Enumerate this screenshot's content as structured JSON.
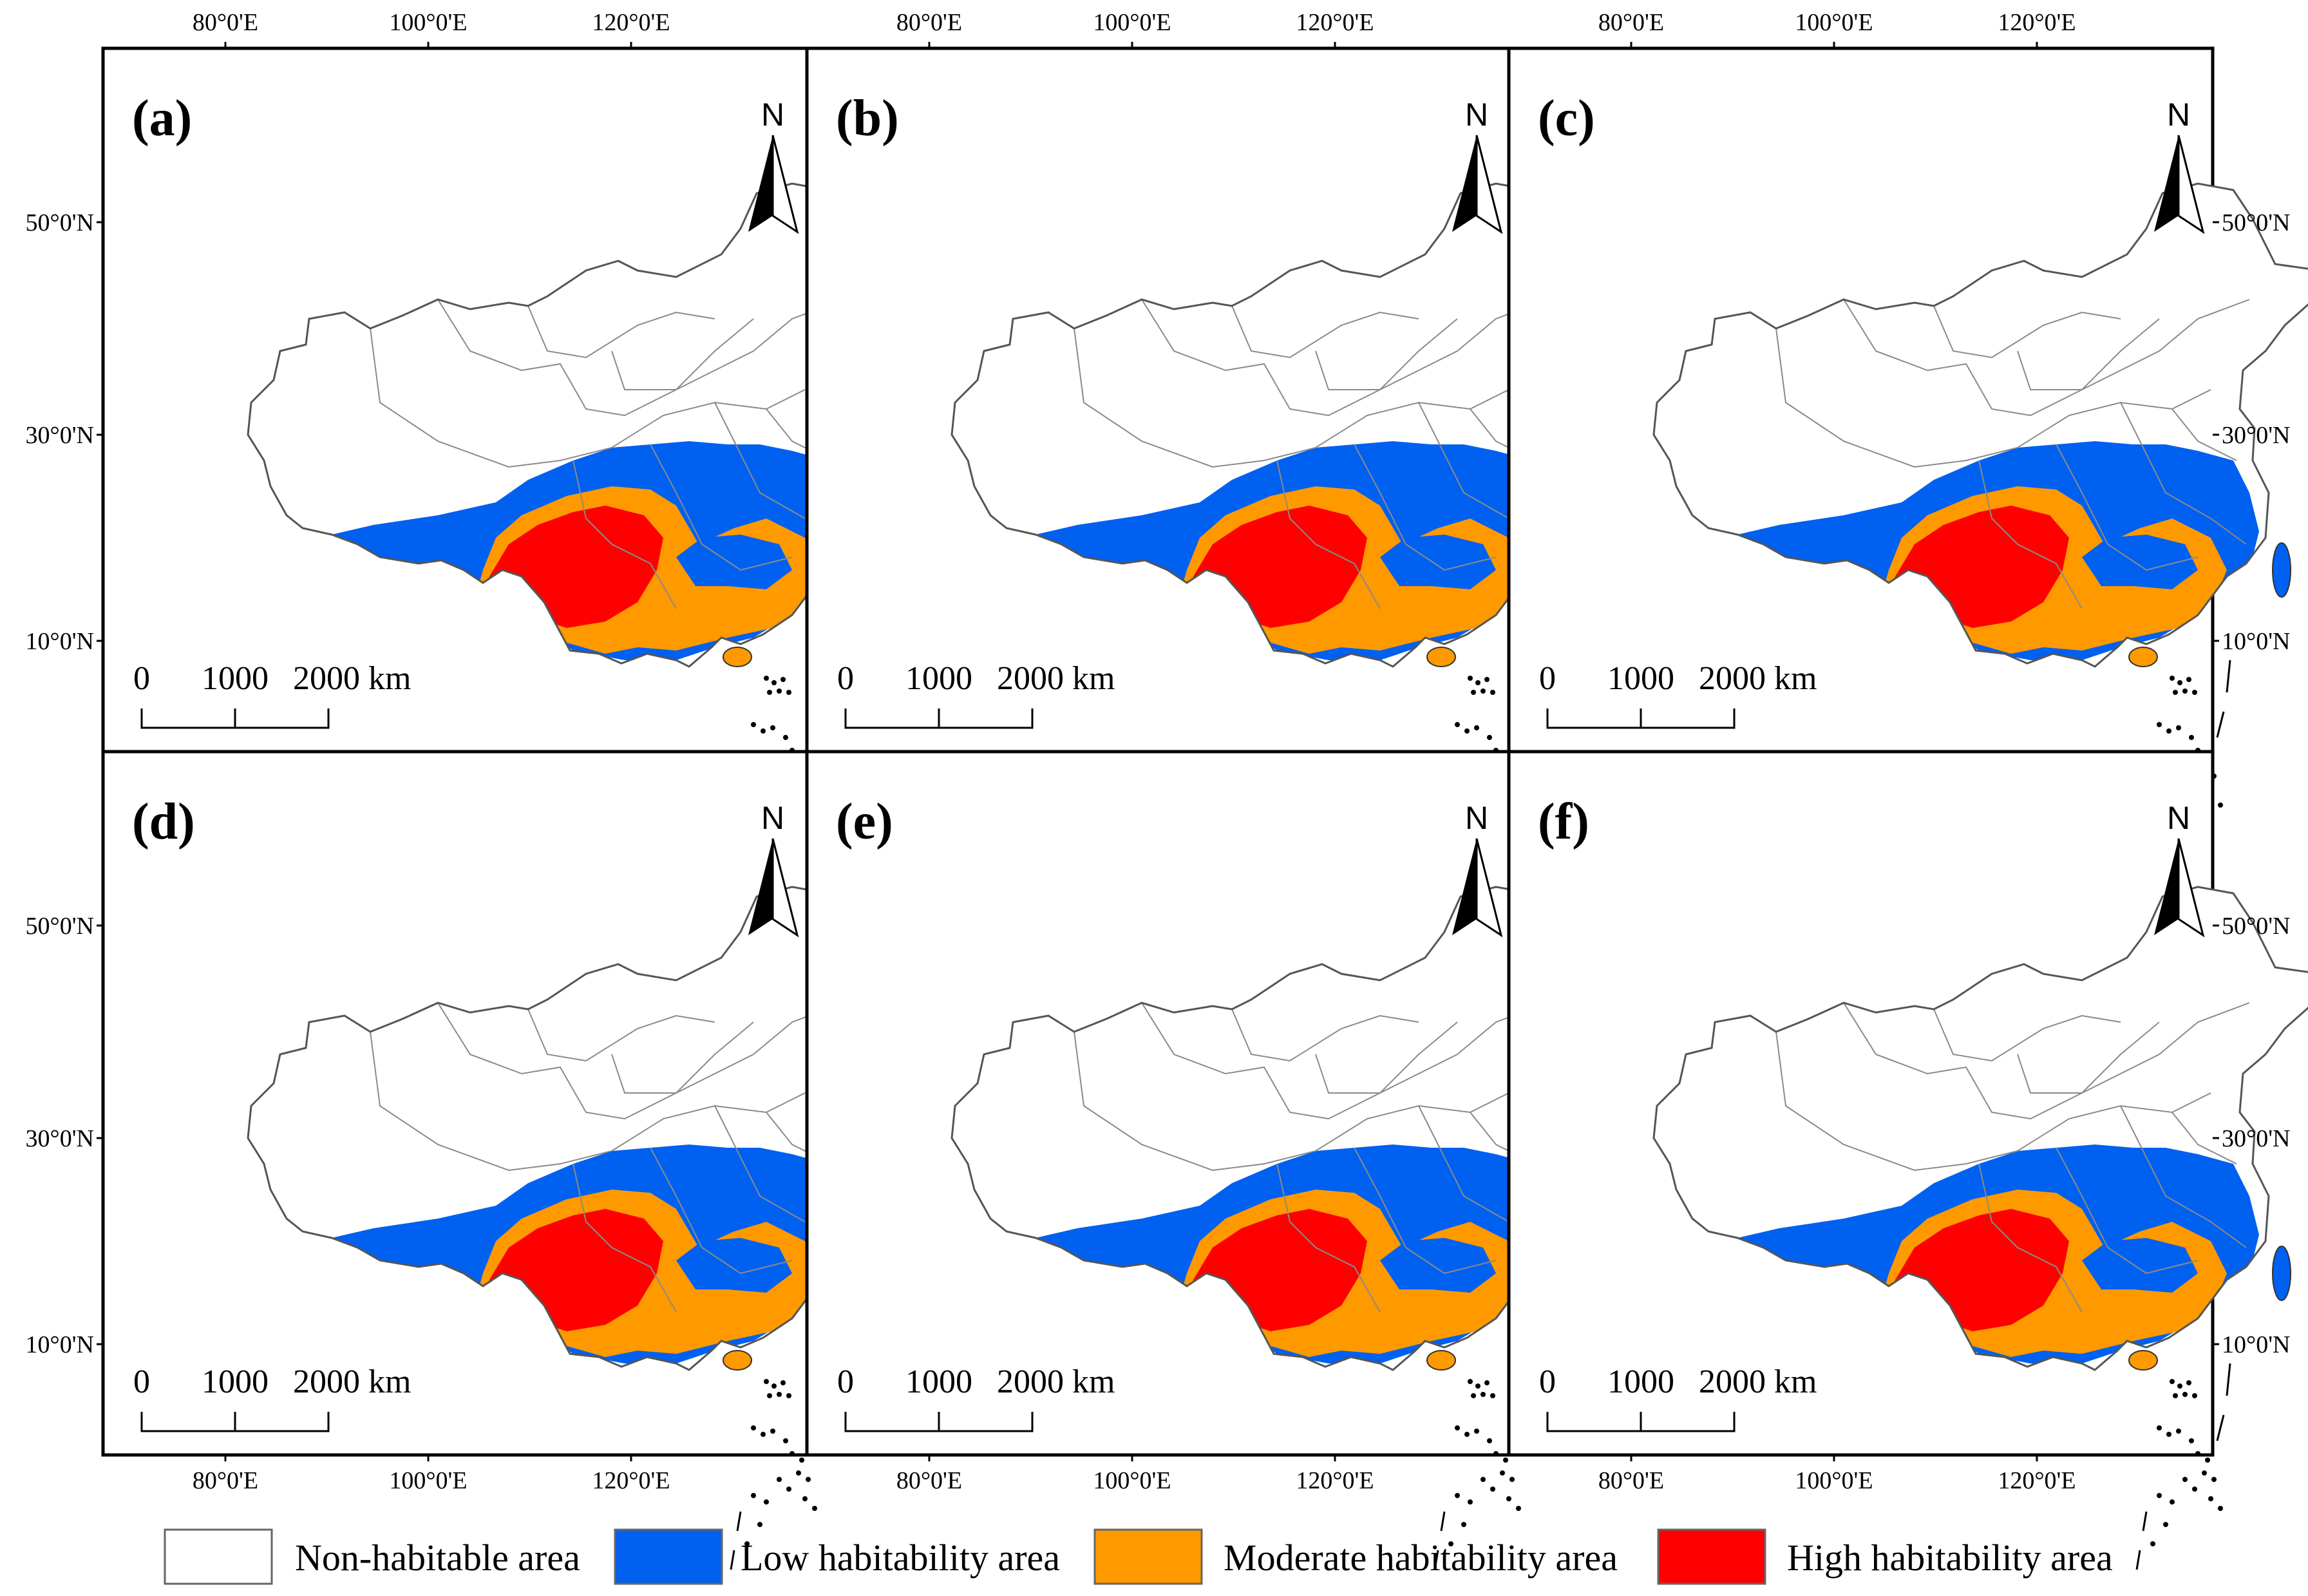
{
  "figure": {
    "lon_labels": [
      "80°0'E",
      "100°0'E",
      "120°0'E"
    ],
    "lat_labels": [
      "50°0'N",
      "30°0'N",
      "10°0'N"
    ],
    "north_label": "N",
    "scale_labels": [
      "0",
      "1000",
      "2000 km"
    ]
  },
  "panels": [
    {
      "label": "(a)"
    },
    {
      "label": "(b)"
    },
    {
      "label": "(c)"
    },
    {
      "label": "(d)"
    },
    {
      "label": "(e)"
    },
    {
      "label": "(f)"
    }
  ],
  "legend": [
    {
      "label": "Non-habitable area",
      "color": "#ffffff"
    },
    {
      "label": "Low habitability area",
      "color": "#0060f0"
    },
    {
      "label": "Moderate habitability area",
      "color": "#ff9900"
    },
    {
      "label": "High habitability area",
      "color": "#ff0000"
    }
  ]
}
